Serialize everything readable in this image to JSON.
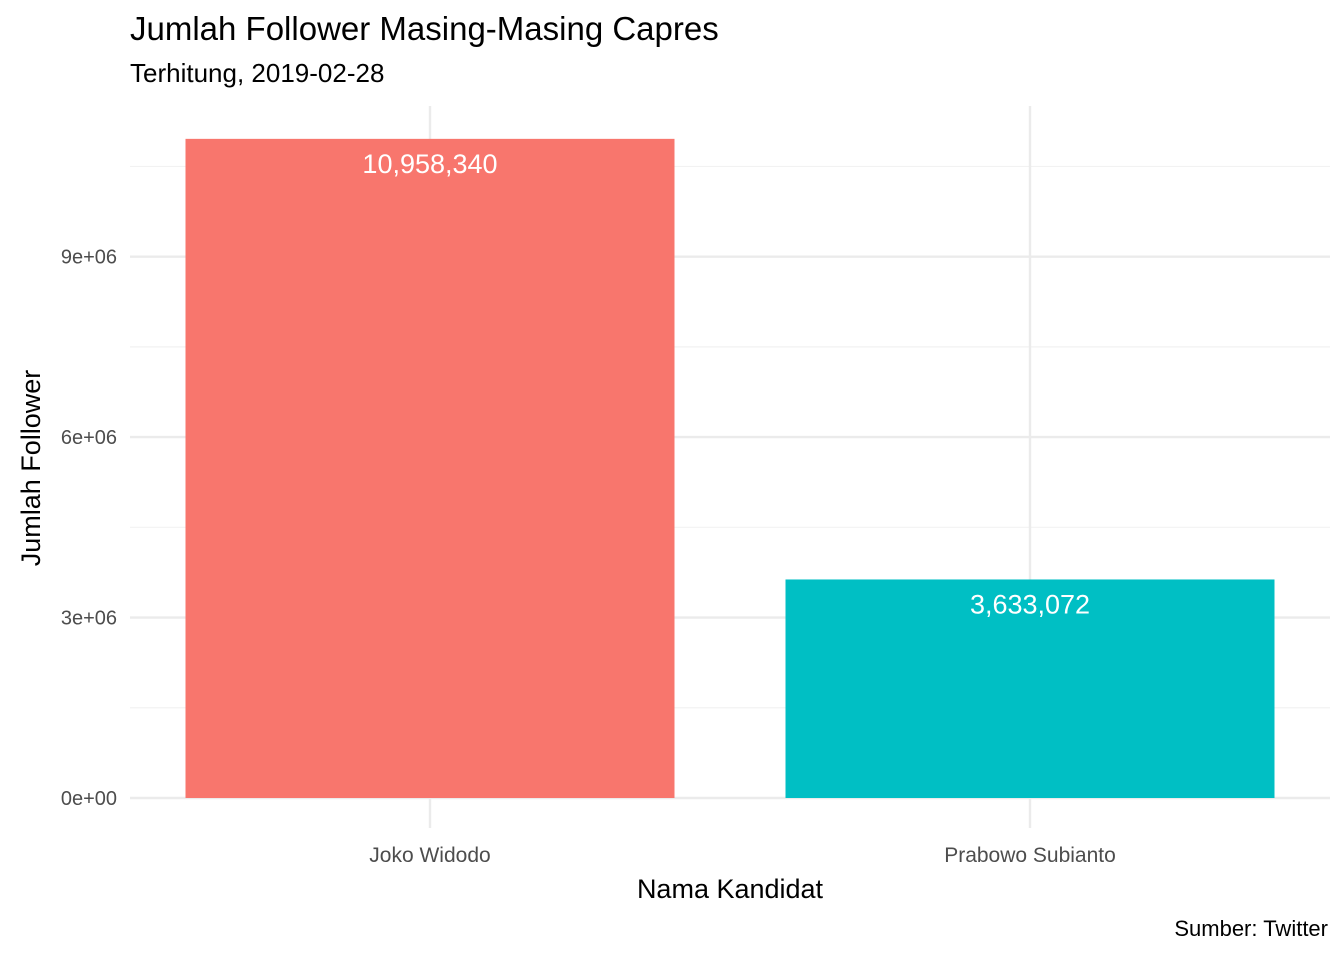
{
  "chart_data": {
    "type": "bar",
    "title": "Jumlah Follower Masing-Masing Capres",
    "subtitle": "Terhitung, 2019-02-28",
    "caption": "Sumber: Twitter",
    "xlabel": "Nama Kandidat",
    "ylabel": "Jumlah Follower",
    "categories": [
      "Joko Widodo",
      "Prabowo Subianto"
    ],
    "values": [
      10958340,
      3633072
    ],
    "value_labels": [
      "10,958,340",
      "3,633,072"
    ],
    "colors": [
      "#F8766D",
      "#00BFC4"
    ],
    "yticks": [
      0,
      3000000,
      6000000,
      9000000
    ],
    "ytick_labels": [
      "0e+00",
      "3e+06",
      "6e+06",
      "9e+06"
    ],
    "ylim": [
      0,
      11500000
    ],
    "grid": true,
    "legend": "none"
  }
}
